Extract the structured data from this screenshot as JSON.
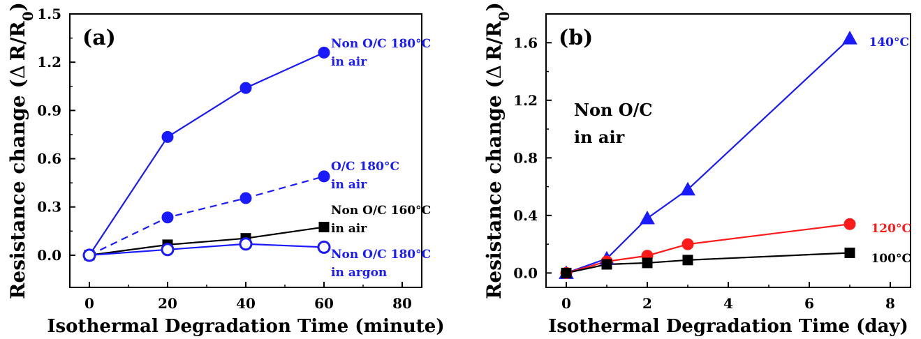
{
  "chart_data": [
    {
      "type": "line",
      "panel_label": "(a)",
      "xlabel": "Isothermal Degradation Time (minute)",
      "ylabel_prefix": "Resistance change (",
      "ylabel_delta": "Δ",
      "ylabel_r": "R/R",
      "ylabel_sub": "0",
      "ylabel_suffix": ")",
      "xlim": [
        -5,
        85
      ],
      "ylim": [
        -0.2,
        1.5
      ],
      "xticks": [
        0,
        20,
        40,
        60,
        80
      ],
      "xtick_labels": [
        "0",
        "20",
        "40",
        "60",
        "80"
      ],
      "yticks": [
        0.0,
        0.3,
        0.6,
        0.9,
        1.2,
        1.5
      ],
      "ytick_labels": [
        "0.0",
        "0.3",
        "0.6",
        "0.9",
        "1.2",
        "1.5"
      ],
      "grid": false,
      "series": [
        {
          "label_lines": [
            "Non O/C 180°C",
            "in air"
          ],
          "x": [
            0,
            20,
            40,
            60
          ],
          "y": [
            0.0,
            0.735,
            1.04,
            1.26
          ],
          "color": "#1a1aff",
          "marker": "circle",
          "filled": true,
          "dashed": false
        },
        {
          "label_lines": [
            "O/C 180°C",
            "in air"
          ],
          "x": [
            0,
            20,
            40,
            60
          ],
          "y": [
            0.0,
            0.235,
            0.355,
            0.49
          ],
          "color": "#1a1aff",
          "marker": "circle",
          "filled": true,
          "dashed": true
        },
        {
          "label_lines": [
            "Non O/C 160°C",
            "in air"
          ],
          "x": [
            0,
            20,
            40,
            60
          ],
          "y": [
            0.0,
            0.065,
            0.105,
            0.175
          ],
          "color": "#000000",
          "marker": "square",
          "filled": true,
          "dashed": false
        },
        {
          "label_lines": [
            "Non O/C 180°C",
            "in argon"
          ],
          "x": [
            0,
            20,
            40,
            60
          ],
          "y": [
            0.0,
            0.035,
            0.07,
            0.05
          ],
          "color": "#1a1aff",
          "marker": "circle",
          "filled": false,
          "dashed": false
        }
      ]
    },
    {
      "type": "line",
      "panel_label": "(b)",
      "annotation_lines": [
        "Non O/C",
        "in air"
      ],
      "xlabel": "Isothermal Degradation Time (day)",
      "ylabel_prefix": "Resistance change (",
      "ylabel_delta": "Δ",
      "ylabel_r": "R/R",
      "ylabel_sub": "0",
      "ylabel_suffix": ")",
      "xlim": [
        -0.5,
        8.5
      ],
      "ylim": [
        -0.1,
        1.8
      ],
      "xticks": [
        0,
        2,
        4,
        6,
        8
      ],
      "xtick_labels": [
        "0",
        "2",
        "4",
        "6",
        "8"
      ],
      "yticks": [
        0.0,
        0.4,
        0.8,
        1.2,
        1.6
      ],
      "ytick_labels": [
        "0.0",
        "0.4",
        "0.8",
        "1.2",
        "1.6"
      ],
      "grid": false,
      "series": [
        {
          "label_lines": [
            "140°C"
          ],
          "x": [
            0,
            1,
            2,
            3,
            7
          ],
          "y": [
            0.0,
            0.1,
            0.38,
            0.58,
            1.63
          ],
          "color": "#1a1aff",
          "marker": "triangle",
          "filled": true,
          "dashed": false
        },
        {
          "label_lines": [
            "120°C"
          ],
          "x": [
            0,
            1,
            2,
            3,
            7
          ],
          "y": [
            0.0,
            0.08,
            0.12,
            0.2,
            0.34
          ],
          "color": "#ff1a1a",
          "marker": "circle",
          "filled": true,
          "dashed": false
        },
        {
          "label_lines": [
            "100°C"
          ],
          "x": [
            0,
            1,
            2,
            3,
            7
          ],
          "y": [
            0.0,
            0.06,
            0.07,
            0.09,
            0.14
          ],
          "color": "#000000",
          "marker": "square",
          "filled": true,
          "dashed": false
        }
      ]
    }
  ]
}
